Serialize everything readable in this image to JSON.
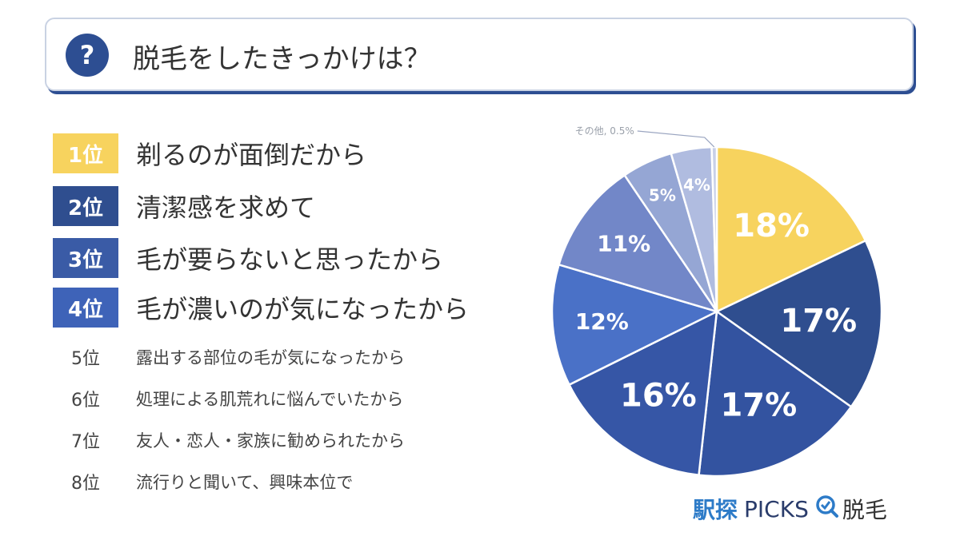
{
  "header": {
    "title": "脱毛をしたきっかけは？",
    "icon": "question-icon",
    "icon_glyph": "?"
  },
  "ranking": [
    {
      "rank": "1位",
      "text": "剃るのが面倒だから",
      "color": "#f7d35e"
    },
    {
      "rank": "2位",
      "text": "清潔感を求めて",
      "color": "#2f4e8f"
    },
    {
      "rank": "3位",
      "text": "毛が要らないと思ったから",
      "color": "#3a5ba6"
    },
    {
      "rank": "4位",
      "text": "毛が濃いのが気になったから",
      "color": "#3e63b8"
    },
    {
      "rank": "5位",
      "text": "露出する部位の毛が気になったから"
    },
    {
      "rank": "6位",
      "text": "処理による肌荒れに悩んでいたから"
    },
    {
      "rank": "7位",
      "text": "友人・恋人・家族に勧められたから"
    },
    {
      "rank": "8位",
      "text": "流行りと聞いて、興味本位で"
    }
  ],
  "chart_data": {
    "type": "pie",
    "title": "",
    "slices": [
      {
        "label": "18%",
        "value": 18,
        "color": "#f7d35e"
      },
      {
        "label": "17%",
        "value": 17,
        "color": "#2f4e8f"
      },
      {
        "label": "17%",
        "value": 17,
        "color": "#3353a0"
      },
      {
        "label": "16%",
        "value": 16,
        "color": "#3656a6"
      },
      {
        "label": "12%",
        "value": 12,
        "color": "#4a71c7"
      },
      {
        "label": "11%",
        "value": 11,
        "color": "#7287c8"
      },
      {
        "label": "5%",
        "value": 5,
        "color": "#95a6d4"
      },
      {
        "label": "4%",
        "value": 4,
        "color": "#b0bce0"
      },
      {
        "label": "その他, 0.5%",
        "value": 0.5,
        "color": "#c8d0e8",
        "callout": true
      }
    ]
  },
  "logo": {
    "part1": "駅探",
    "part2": "PICKS",
    "part3": "脱毛",
    "icon": "magnifier-check-icon"
  }
}
